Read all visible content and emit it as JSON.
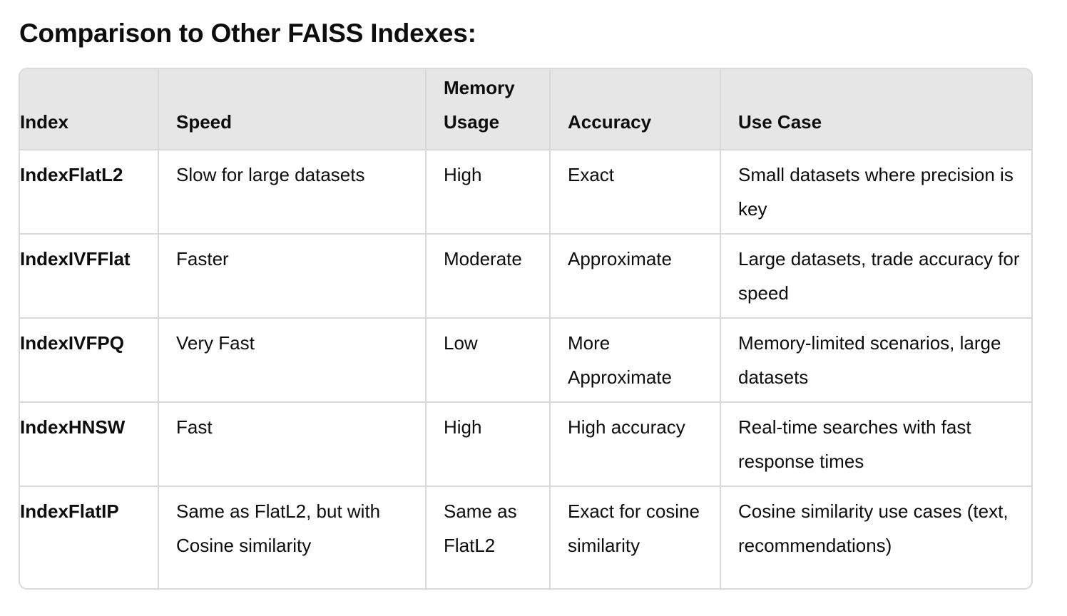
{
  "heading": "Comparison to Other FAISS Indexes:",
  "table": {
    "headers": [
      "Index",
      "Speed",
      "Memory Usage",
      "Accuracy",
      "Use Case"
    ],
    "rows": [
      {
        "index": "IndexFlatL2",
        "speed": "Slow for large datasets",
        "memory": "High",
        "accuracy": "Exact",
        "use_case": "Small datasets where precision is key"
      },
      {
        "index": "IndexIVFFlat",
        "speed": "Faster",
        "memory": "Moderate",
        "accuracy": "Approximate",
        "use_case": "Large datasets, trade accuracy for speed"
      },
      {
        "index": "IndexIVFPQ",
        "speed": "Very Fast",
        "memory": "Low",
        "accuracy": "More Approximate",
        "use_case": "Memory-limited scenarios, large datasets"
      },
      {
        "index": "IndexHNSW",
        "speed": "Fast",
        "memory": "High",
        "accuracy": "High accuracy",
        "use_case": "Real-time searches with fast response times"
      },
      {
        "index": "IndexFlatIP",
        "speed": "Same as FlatL2, but with Cosine similarity",
        "memory": "Same as FlatL2",
        "accuracy": "Exact for cosine similarity",
        "use_case": "Cosine similarity use cases (text, recommendations)"
      }
    ]
  }
}
